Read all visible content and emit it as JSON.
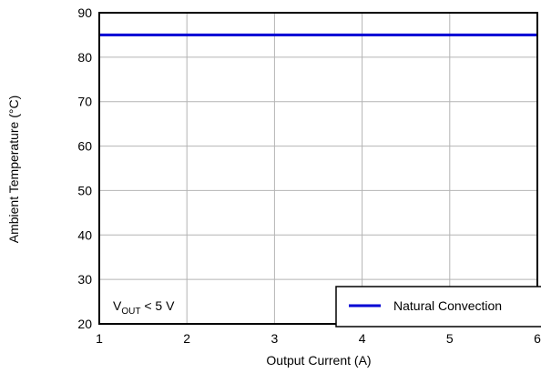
{
  "chart_data": {
    "type": "line",
    "xlabel": "Output Current (A)",
    "ylabel": "Ambient Temperature (°C)",
    "xlim": [
      1,
      6
    ],
    "ylim": [
      20,
      90
    ],
    "x_ticks": [
      "1",
      "2",
      "3",
      "4",
      "5",
      "6"
    ],
    "y_ticks": [
      "20",
      "30",
      "40",
      "50",
      "60",
      "70",
      "80",
      "90"
    ],
    "grid": true,
    "series": [
      {
        "name": "Natural Convection",
        "color": "#0000d4",
        "x": [
          1,
          6
        ],
        "y": [
          85,
          85
        ]
      }
    ],
    "legend": {
      "placement": "bottom-right"
    },
    "annotation": {
      "main": "V",
      "subscript": "OUT",
      "suffix": " < 5 V",
      "placement": "bottom-left"
    }
  }
}
